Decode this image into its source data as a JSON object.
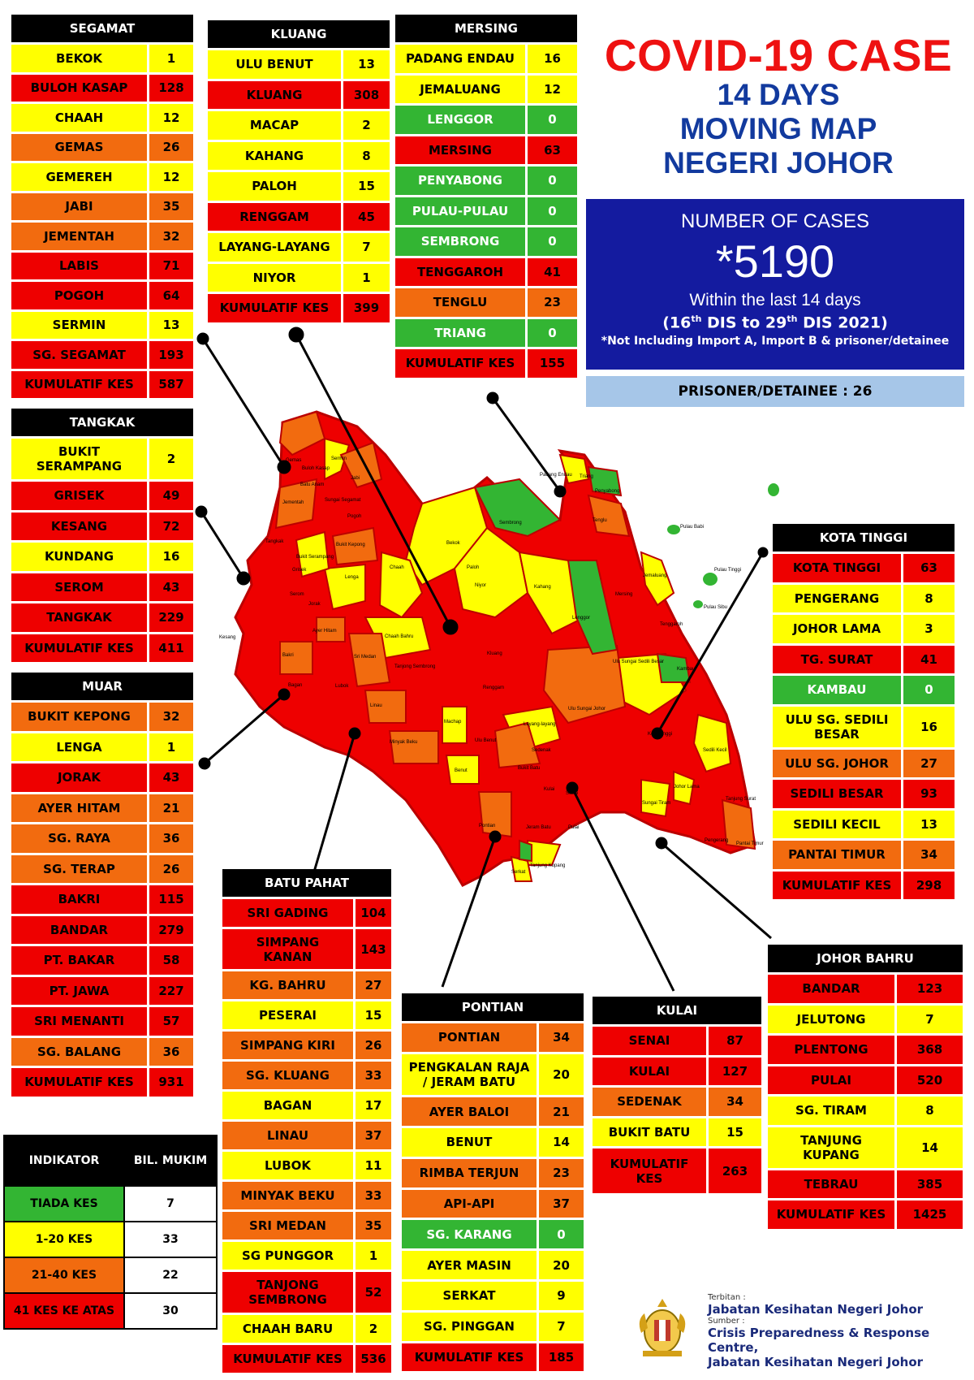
{
  "title": {
    "line1": "COVID-19 CASE",
    "line2": "14 DAYS",
    "line3": "MOVING MAP",
    "line4": "NEGERI JOHOR"
  },
  "summary": {
    "label": "NUMBER OF CASES",
    "total": "*5190",
    "within": "Within the last 14 days",
    "period_prefix": "(16",
    "period_sup1": "th",
    "period_mid": " DIS to 29",
    "period_sup2": "th",
    "period_suffix": " DIS 2021)",
    "note": "*Not Including Import A, Import B & prisoner/detainee",
    "prisoner": "PRISONER/DETAINEE : 26"
  },
  "colors": {
    "green": "#33b533",
    "yellow": "#ffff00",
    "orange": "#f26b0f",
    "red": "#ee0000"
  },
  "districts": {
    "segamat": {
      "name": "SEGAMAT",
      "rows": [
        {
          "name": "BEKOK",
          "value": "1",
          "level": "y"
        },
        {
          "name": "BULOH KASAP",
          "value": "128",
          "level": "r"
        },
        {
          "name": "CHAAH",
          "value": "12",
          "level": "y"
        },
        {
          "name": "GEMAS",
          "value": "26",
          "level": "o"
        },
        {
          "name": "GEMEREH",
          "value": "12",
          "level": "y"
        },
        {
          "name": "JABI",
          "value": "35",
          "level": "o"
        },
        {
          "name": "JEMENTAH",
          "value": "32",
          "level": "o"
        },
        {
          "name": "LABIS",
          "value": "71",
          "level": "r"
        },
        {
          "name": "POGOH",
          "value": "64",
          "level": "r"
        },
        {
          "name": "SERMIN",
          "value": "13",
          "level": "y"
        },
        {
          "name": "SG. SEGAMAT",
          "value": "193",
          "level": "r"
        }
      ],
      "total_label": "KUMULATIF KES",
      "total": "587"
    },
    "kluang": {
      "name": "KLUANG",
      "rows": [
        {
          "name": "ULU BENUT",
          "value": "13",
          "level": "y"
        },
        {
          "name": "KLUANG",
          "value": "308",
          "level": "r"
        },
        {
          "name": "MACAP",
          "value": "2",
          "level": "y"
        },
        {
          "name": "KAHANG",
          "value": "8",
          "level": "y"
        },
        {
          "name": "PALOH",
          "value": "15",
          "level": "y"
        },
        {
          "name": "RENGGAM",
          "value": "45",
          "level": "r"
        },
        {
          "name": "LAYANG-LAYANG",
          "value": "7",
          "level": "y"
        },
        {
          "name": "NIYOR",
          "value": "1",
          "level": "y"
        }
      ],
      "total_label": "KUMULATIF KES",
      "total": "399"
    },
    "mersing": {
      "name": "MERSING",
      "rows": [
        {
          "name": "PADANG ENDAU",
          "value": "16",
          "level": "y"
        },
        {
          "name": "JEMALUANG",
          "value": "12",
          "level": "y"
        },
        {
          "name": "LENGGOR",
          "value": "0",
          "level": "g"
        },
        {
          "name": "MERSING",
          "value": "63",
          "level": "r"
        },
        {
          "name": "PENYABONG",
          "value": "0",
          "level": "g"
        },
        {
          "name": "PULAU-PULAU",
          "value": "0",
          "level": "g"
        },
        {
          "name": "SEMBRONG",
          "value": "0",
          "level": "g"
        },
        {
          "name": "TENGGAROH",
          "value": "41",
          "level": "r"
        },
        {
          "name": "TENGLU",
          "value": "23",
          "level": "o"
        },
        {
          "name": "TRIANG",
          "value": "0",
          "level": "g"
        }
      ],
      "total_label": "KUMULATIF KES",
      "total": "155"
    },
    "tangkak": {
      "name": "TANGKAK",
      "rows": [
        {
          "name": "BUKIT SERAMPANG",
          "value": "2",
          "level": "y",
          "two": true,
          "l1": "BUKIT",
          "l2": "SERAMPANG"
        },
        {
          "name": "GRISEK",
          "value": "49",
          "level": "r"
        },
        {
          "name": "KESANG",
          "value": "72",
          "level": "r"
        },
        {
          "name": "KUNDANG",
          "value": "16",
          "level": "y"
        },
        {
          "name": "SEROM",
          "value": "43",
          "level": "r"
        },
        {
          "name": "TANGKAK",
          "value": "229",
          "level": "r"
        }
      ],
      "total_label": "KUMULATIF KES",
      "total": "411"
    },
    "muar": {
      "name": "MUAR",
      "rows": [
        {
          "name": "BUKIT KEPONG",
          "value": "32",
          "level": "o"
        },
        {
          "name": "LENGA",
          "value": "1",
          "level": "y"
        },
        {
          "name": "JORAK",
          "value": "43",
          "level": "r"
        },
        {
          "name": "AYER HITAM",
          "value": "21",
          "level": "o"
        },
        {
          "name": "SG. RAYA",
          "value": "36",
          "level": "o"
        },
        {
          "name": "SG. TERAP",
          "value": "26",
          "level": "o"
        },
        {
          "name": "BAKRI",
          "value": "115",
          "level": "r"
        },
        {
          "name": "BANDAR",
          "value": "279",
          "level": "r"
        },
        {
          "name": "PT. BAKAR",
          "value": "58",
          "level": "r"
        },
        {
          "name": "PT. JAWA",
          "value": "227",
          "level": "r"
        },
        {
          "name": "SRI MENANTI",
          "value": "57",
          "level": "r"
        },
        {
          "name": "SG. BALANG",
          "value": "36",
          "level": "o"
        }
      ],
      "total_label": "KUMULATIF KES",
      "total": "931"
    },
    "batu_pahat": {
      "name": "BATU PAHAT",
      "rows": [
        {
          "name": "SRI GADING",
          "value": "104",
          "level": "r"
        },
        {
          "name": "SIMPANG KANAN",
          "value": "143",
          "level": "r",
          "two": true,
          "l1": "SIMPANG",
          "l2": "KANAN"
        },
        {
          "name": "KG. BAHRU",
          "value": "27",
          "level": "o"
        },
        {
          "name": "PESERAI",
          "value": "15",
          "level": "y"
        },
        {
          "name": "SIMPANG KIRI",
          "value": "26",
          "level": "o"
        },
        {
          "name": "SG. KLUANG",
          "value": "33",
          "level": "o"
        },
        {
          "name": "BAGAN",
          "value": "17",
          "level": "y"
        },
        {
          "name": "LINAU",
          "value": "37",
          "level": "o"
        },
        {
          "name": "LUBOK",
          "value": "11",
          "level": "y"
        },
        {
          "name": "MINYAK BEKU",
          "value": "33",
          "level": "o"
        },
        {
          "name": "SRI MEDAN",
          "value": "35",
          "level": "o"
        },
        {
          "name": "SG PUNGGOR",
          "value": "1",
          "level": "y"
        },
        {
          "name": "TANJONG SEMBRONG",
          "value": "52",
          "level": "r",
          "two": true,
          "l1": "TANJONG",
          "l2": "SEMBRONG"
        },
        {
          "name": "CHAAH BARU",
          "value": "2",
          "level": "y"
        }
      ],
      "total_label": "KUMULATIF KES",
      "total": "536"
    },
    "pontian": {
      "name": "PONTIAN",
      "rows": [
        {
          "name": "PONTIAN",
          "value": "34",
          "level": "o"
        },
        {
          "name": "PENGKALAN RAJA / JERAM BATU",
          "value": "20",
          "level": "y",
          "two": true,
          "l1": "PENGKALAN RAJA",
          "l2": "/ JERAM BATU"
        },
        {
          "name": "AYER BALOI",
          "value": "21",
          "level": "o"
        },
        {
          "name": "BENUT",
          "value": "14",
          "level": "y"
        },
        {
          "name": "RIMBA TERJUN",
          "value": "23",
          "level": "o"
        },
        {
          "name": "API-API",
          "value": "37",
          "level": "o"
        },
        {
          "name": "SG. KARANG",
          "value": "0",
          "level": "g"
        },
        {
          "name": "AYER MASIN",
          "value": "20",
          "level": "y"
        },
        {
          "name": "SERKAT",
          "value": "9",
          "level": "y"
        },
        {
          "name": "SG. PINGGAN",
          "value": "7",
          "level": "y"
        }
      ],
      "total_label": "KUMULATIF KES",
      "total": "185"
    },
    "kulai": {
      "name": "KULAI",
      "rows": [
        {
          "name": "SENAI",
          "value": "87",
          "level": "r"
        },
        {
          "name": "KULAI",
          "value": "127",
          "level": "r"
        },
        {
          "name": "SEDENAK",
          "value": "34",
          "level": "o"
        },
        {
          "name": "BUKIT BATU",
          "value": "15",
          "level": "y"
        }
      ],
      "total_label": "KUMULATIF KES",
      "total_l1": "KUMULATIF",
      "total_l2": "KES",
      "total": "263"
    },
    "kota_tinggi": {
      "name": "KOTA TINGGI",
      "rows": [
        {
          "name": "KOTA TINGGI",
          "value": "63",
          "level": "r"
        },
        {
          "name": "PENGERANG",
          "value": "8",
          "level": "y"
        },
        {
          "name": "JOHOR LAMA",
          "value": "3",
          "level": "y"
        },
        {
          "name": "TG. SURAT",
          "value": "41",
          "level": "r"
        },
        {
          "name": "KAMBAU",
          "value": "0",
          "level": "g"
        },
        {
          "name": "ULU SG. SEDILI BESAR",
          "value": "16",
          "level": "y",
          "two": true,
          "l1": "ULU SG. SEDILI",
          "l2": "BESAR"
        },
        {
          "name": "ULU  SG. JOHOR",
          "value": "27",
          "level": "o"
        },
        {
          "name": "SEDILI BESAR",
          "value": "93",
          "level": "r"
        },
        {
          "name": "SEDILI KECIL",
          "value": "13",
          "level": "y"
        },
        {
          "name": "PANTAI TIMUR",
          "value": "34",
          "level": "o"
        }
      ],
      "total_label": "KUMULATIF KES",
      "total": "298"
    },
    "johor_bahru": {
      "name": "JOHOR BAHRU",
      "rows": [
        {
          "name": "BANDAR",
          "value": "123",
          "level": "r"
        },
        {
          "name": "JELUTONG",
          "value": "7",
          "level": "y"
        },
        {
          "name": "PLENTONG",
          "value": "368",
          "level": "r"
        },
        {
          "name": "PULAI",
          "value": "520",
          "level": "r"
        },
        {
          "name": "SG. TIRAM",
          "value": "8",
          "level": "y"
        },
        {
          "name": "TANJUNG KUPANG",
          "value": "14",
          "level": "y",
          "two": true,
          "l1": "TANJUNG",
          "l2": "KUPANG"
        },
        {
          "name": "TEBRAU",
          "value": "385",
          "level": "r"
        }
      ],
      "total_label": "KUMULATIF KES",
      "total": "1425"
    }
  },
  "indikator": {
    "h1": "INDIKATOR",
    "h2": "BIL. MUKIM",
    "rows": [
      {
        "label": "TIADA KES",
        "count": "7",
        "level": "g"
      },
      {
        "label": "1-20 KES",
        "count": "33",
        "level": "y"
      },
      {
        "label": "21-40 KES",
        "count": "22",
        "level": "o"
      },
      {
        "label": "41 KES KE ATAS",
        "count": "30",
        "level": "r"
      }
    ]
  },
  "footer": {
    "terbitan_label": "Terbitan :",
    "terbitan": "Jabatan Kesihatan Negeri Johor",
    "sumber_label": "Sumber :",
    "sumber1": "Crisis Preparedness & Response Centre,",
    "sumber2": "Jabatan Kesihatan Negeri Johor"
  },
  "map_labels": [
    "Gemas",
    "Buloh Kasap",
    "Sermin",
    "Jabi",
    "Batu Anam",
    "Sungai Segamat",
    "Jementah",
    "Pogoh",
    "Bukit Serampang",
    "Tangkak",
    "Bukit Kepong",
    "Lenga",
    "Grisek",
    "Chaah",
    "Bekok",
    "Sembrong",
    "Paloh",
    "Kahang",
    "Niyor",
    "Lenggor",
    "Mersing",
    "Jemaluang",
    "Tenggaroh",
    "Padang Endau",
    "Triang",
    "Penyabong",
    "Tenglu",
    "Pulau Babi",
    "Pulau Tinggi",
    "Pulau Sibu",
    "Kesang",
    "Serom",
    "Jorak",
    "Chaah Bahru",
    "Sri Medan",
    "Ayer Hitam",
    "Kluang",
    "Renggam",
    "Tanjong Sembrong",
    "Bakri",
    "Linau",
    "Kambau",
    "Ulu Sungai Sedili Besar",
    "Ulu Sungai Johor",
    "Kota Tinggi",
    "Sedili Kecil",
    "Machap",
    "Layang-layang",
    "Ulu Benut",
    "Sedenak",
    "Bukit Batu",
    "Johor Lama",
    "Tanjung Surat",
    "Senai",
    "Kulai",
    "Benut",
    "Sungai Tiram",
    "Pengerang",
    "Pantai Timur",
    "Pontian",
    "Pulai",
    "Jeram Batu",
    "Tanjung Kupang",
    "Serkat",
    "Minyak Beku",
    "Bagan",
    "Lubok"
  ]
}
